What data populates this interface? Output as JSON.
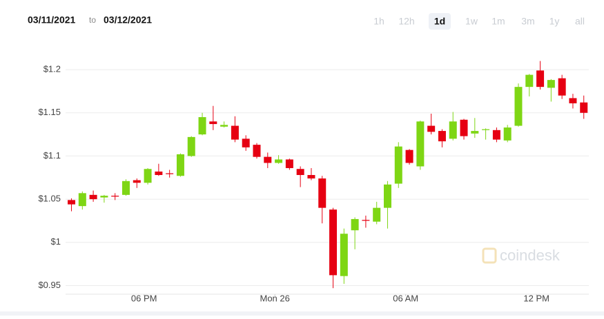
{
  "header": {
    "from": "03/11/2021",
    "to_word": "to",
    "to": "03/12/2021",
    "ranges": [
      "1h",
      "12h",
      "1d",
      "1w",
      "1m",
      "3m",
      "1y",
      "all"
    ],
    "selected_range_index": 2
  },
  "chart_data": {
    "type": "candlestick",
    "watermark": "coindesk",
    "up_color": "#7ed614",
    "down_color": "#e60012",
    "x": [
      14.67,
      15.17,
      15.67,
      16.17,
      16.67,
      17.17,
      17.67,
      18.17,
      18.67,
      19.17,
      19.67,
      20.17,
      20.67,
      21.17,
      21.67,
      22.17,
      22.67,
      23.17,
      23.67,
      24.17,
      24.67,
      25.17,
      25.67,
      26.17,
      26.67,
      27.17,
      27.67,
      28.17,
      28.67,
      29.17,
      29.67,
      30.17,
      30.67,
      31.17,
      31.67,
      32.17,
      32.67,
      33.17,
      33.67,
      34.17,
      34.67,
      35.17,
      35.67,
      36.17,
      36.67,
      37.17,
      37.67,
      38.17
    ],
    "open": [
      1.049,
      1.042,
      1.055,
      1.052,
      1.054,
      1.055,
      1.072,
      1.069,
      1.082,
      1.08,
      1.077,
      1.1,
      1.125,
      1.14,
      1.134,
      1.135,
      1.12,
      1.113,
      1.099,
      1.092,
      1.096,
      1.085,
      1.078,
      1.074,
      1.038,
      0.961,
      1.014,
      1.026,
      1.024,
      1.04,
      1.068,
      1.107,
      1.088,
      1.135,
      1.129,
      1.12,
      1.142,
      1.126,
      1.13,
      1.13,
      1.118,
      1.135,
      1.18,
      1.199,
      1.179,
      1.19,
      1.167,
      1.162
    ],
    "high": [
      1.051,
      1.059,
      1.06,
      1.055,
      1.057,
      1.073,
      1.074,
      1.086,
      1.091,
      1.084,
      1.103,
      1.123,
      1.15,
      1.158,
      1.14,
      1.146,
      1.124,
      1.115,
      1.104,
      1.101,
      1.097,
      1.088,
      1.086,
      1.077,
      1.04,
      1.016,
      1.029,
      1.031,
      1.047,
      1.071,
      1.116,
      1.108,
      1.141,
      1.149,
      1.131,
      1.151,
      1.143,
      1.144,
      1.132,
      1.133,
      1.136,
      1.184,
      1.195,
      1.21,
      1.189,
      1.194,
      1.172,
      1.17
    ],
    "low": [
      1.036,
      1.038,
      1.047,
      1.046,
      1.049,
      1.054,
      1.063,
      1.067,
      1.077,
      1.075,
      1.076,
      1.099,
      1.124,
      1.13,
      1.133,
      1.116,
      1.106,
      1.097,
      1.086,
      1.091,
      1.084,
      1.064,
      1.072,
      1.022,
      0.947,
      0.952,
      0.992,
      1.017,
      1.021,
      1.016,
      1.063,
      1.09,
      1.084,
      1.125,
      1.11,
      1.118,
      1.119,
      1.121,
      1.119,
      1.116,
      1.116,
      1.134,
      1.169,
      1.177,
      1.163,
      1.166,
      1.155,
      1.143
    ],
    "close": [
      1.044,
      1.057,
      1.05,
      1.054,
      1.053,
      1.071,
      1.069,
      1.085,
      1.078,
      1.079,
      1.102,
      1.122,
      1.145,
      1.137,
      1.136,
      1.119,
      1.11,
      1.099,
      1.092,
      1.096,
      1.086,
      1.078,
      1.074,
      1.04,
      0.962,
      1.01,
      1.027,
      1.025,
      1.04,
      1.067,
      1.111,
      1.092,
      1.14,
      1.128,
      1.117,
      1.14,
      1.123,
      1.129,
      1.131,
      1.119,
      1.133,
      1.18,
      1.194,
      1.18,
      1.188,
      1.17,
      1.161,
      1.15
    ],
    "xlim": [
      14.4,
      38.4
    ],
    "ylim": [
      0.94,
      1.22
    ],
    "xticks": [
      {
        "value": 18,
        "label": "06 PM"
      },
      {
        "value": 24,
        "label": "Mon 26"
      },
      {
        "value": 30,
        "label": "06 AM"
      },
      {
        "value": 36,
        "label": "12 PM"
      }
    ],
    "yticks": [
      {
        "value": 0.95,
        "label": "$0.95"
      },
      {
        "value": 1,
        "label": "$1"
      },
      {
        "value": 1.05,
        "label": "$1.05"
      },
      {
        "value": 1.1,
        "label": "$1.1"
      },
      {
        "value": 1.15,
        "label": "$1.15"
      },
      {
        "value": 1.2,
        "label": "$1.2"
      }
    ],
    "grid": true
  }
}
